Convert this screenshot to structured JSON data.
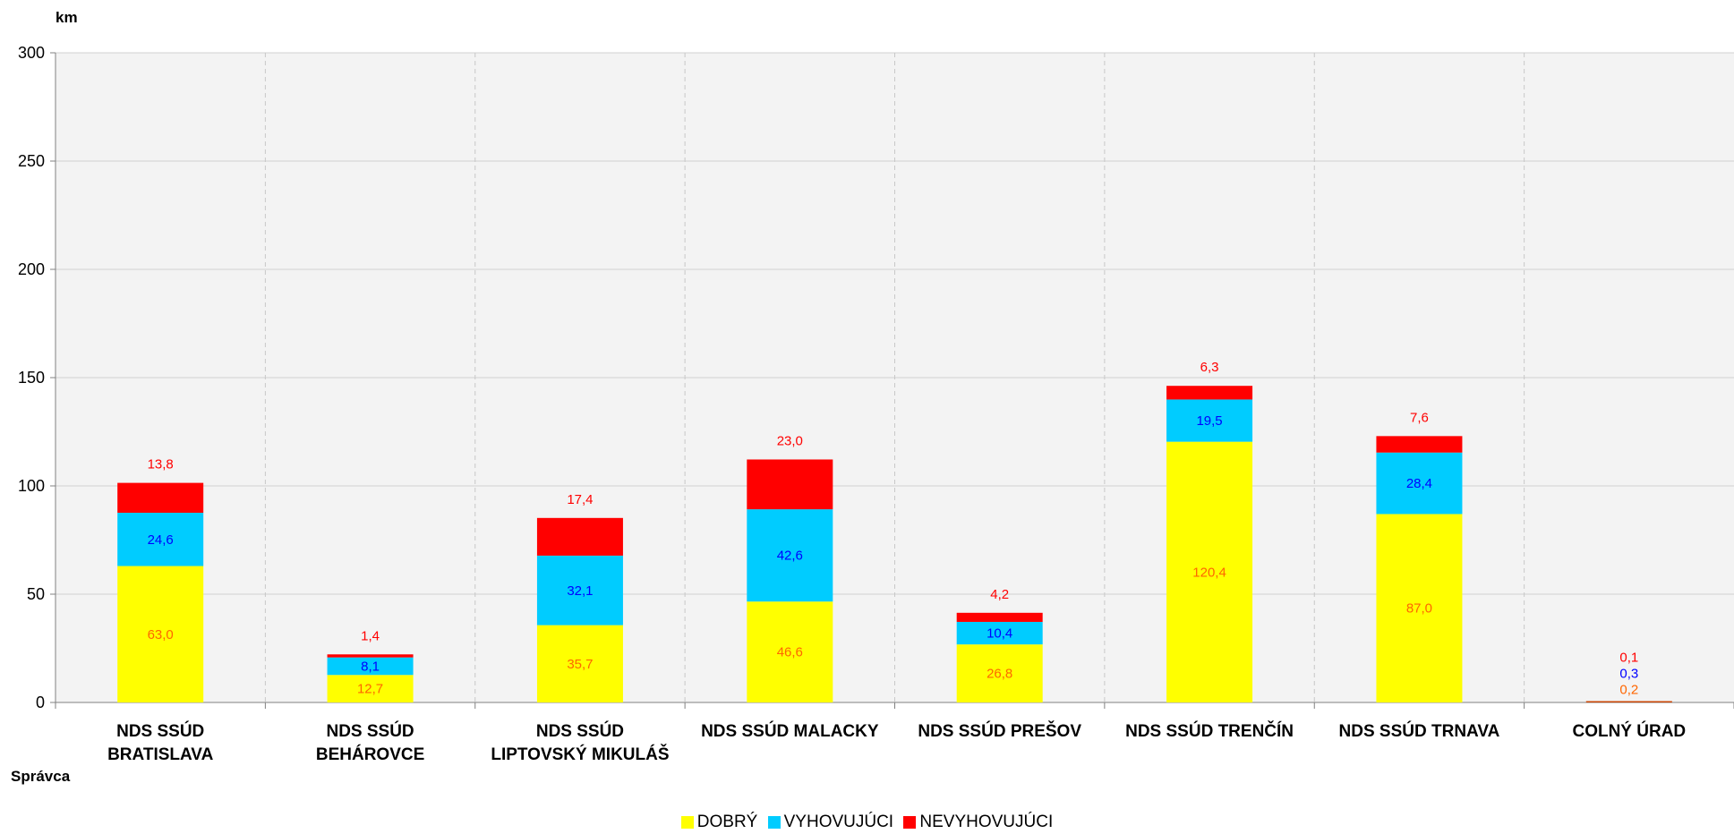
{
  "chart_data": {
    "type": "bar",
    "stacked": true,
    "ylabel": "km",
    "xlabel": "Správca",
    "ylim": [
      0,
      300
    ],
    "yticks": [
      "0",
      "50",
      "100",
      "150",
      "200",
      "250",
      "300"
    ],
    "categories": [
      [
        "NDS SSÚD",
        "BRATISLAVA"
      ],
      [
        "NDS SSÚD",
        "BEHÁROVCE"
      ],
      [
        "NDS SSÚD",
        "LIPTOVSKÝ MIKULÁŠ"
      ],
      [
        "NDS SSÚD MALACKY"
      ],
      [
        "NDS SSÚD PREŠOV"
      ],
      [
        "NDS SSÚD TRENČÍN"
      ],
      [
        "NDS SSÚD TRNAVA"
      ],
      [
        "COLNÝ ÚRAD"
      ]
    ],
    "series": [
      {
        "name": "DOBRÝ",
        "color": "#FFFF00",
        "label_color": "#FF6600",
        "values": [
          63.0,
          12.7,
          35.7,
          46.6,
          26.8,
          120.4,
          87.0,
          0.2
        ],
        "labels": [
          "63,0",
          "12,7",
          "35,7",
          "46,6",
          "26,8",
          "120,4",
          "87,0",
          "0,2"
        ]
      },
      {
        "name": "VYHOVUJÚCI",
        "color": "#00CCFF",
        "label_color": "#0000FF",
        "values": [
          24.6,
          8.1,
          32.1,
          42.6,
          10.4,
          19.5,
          28.4,
          0.3
        ],
        "labels": [
          "24,6",
          "8,1",
          "32,1",
          "42,6",
          "10,4",
          "19,5",
          "28,4",
          "0,3"
        ]
      },
      {
        "name": "NEVYHOVUJÚCI",
        "color": "#FF0000",
        "label_color": "#FF0000",
        "values": [
          13.8,
          1.4,
          17.4,
          23.0,
          4.2,
          6.3,
          7.6,
          0.1
        ],
        "labels": [
          "13,8",
          "1,4",
          "17,4",
          "23,0",
          "4,2",
          "6,3",
          "7,6",
          "0,1"
        ]
      }
    ],
    "grid": true,
    "legend_position": "bottom",
    "plot_background": "#F3F3F3",
    "last_bar_color": "#CC4400"
  }
}
